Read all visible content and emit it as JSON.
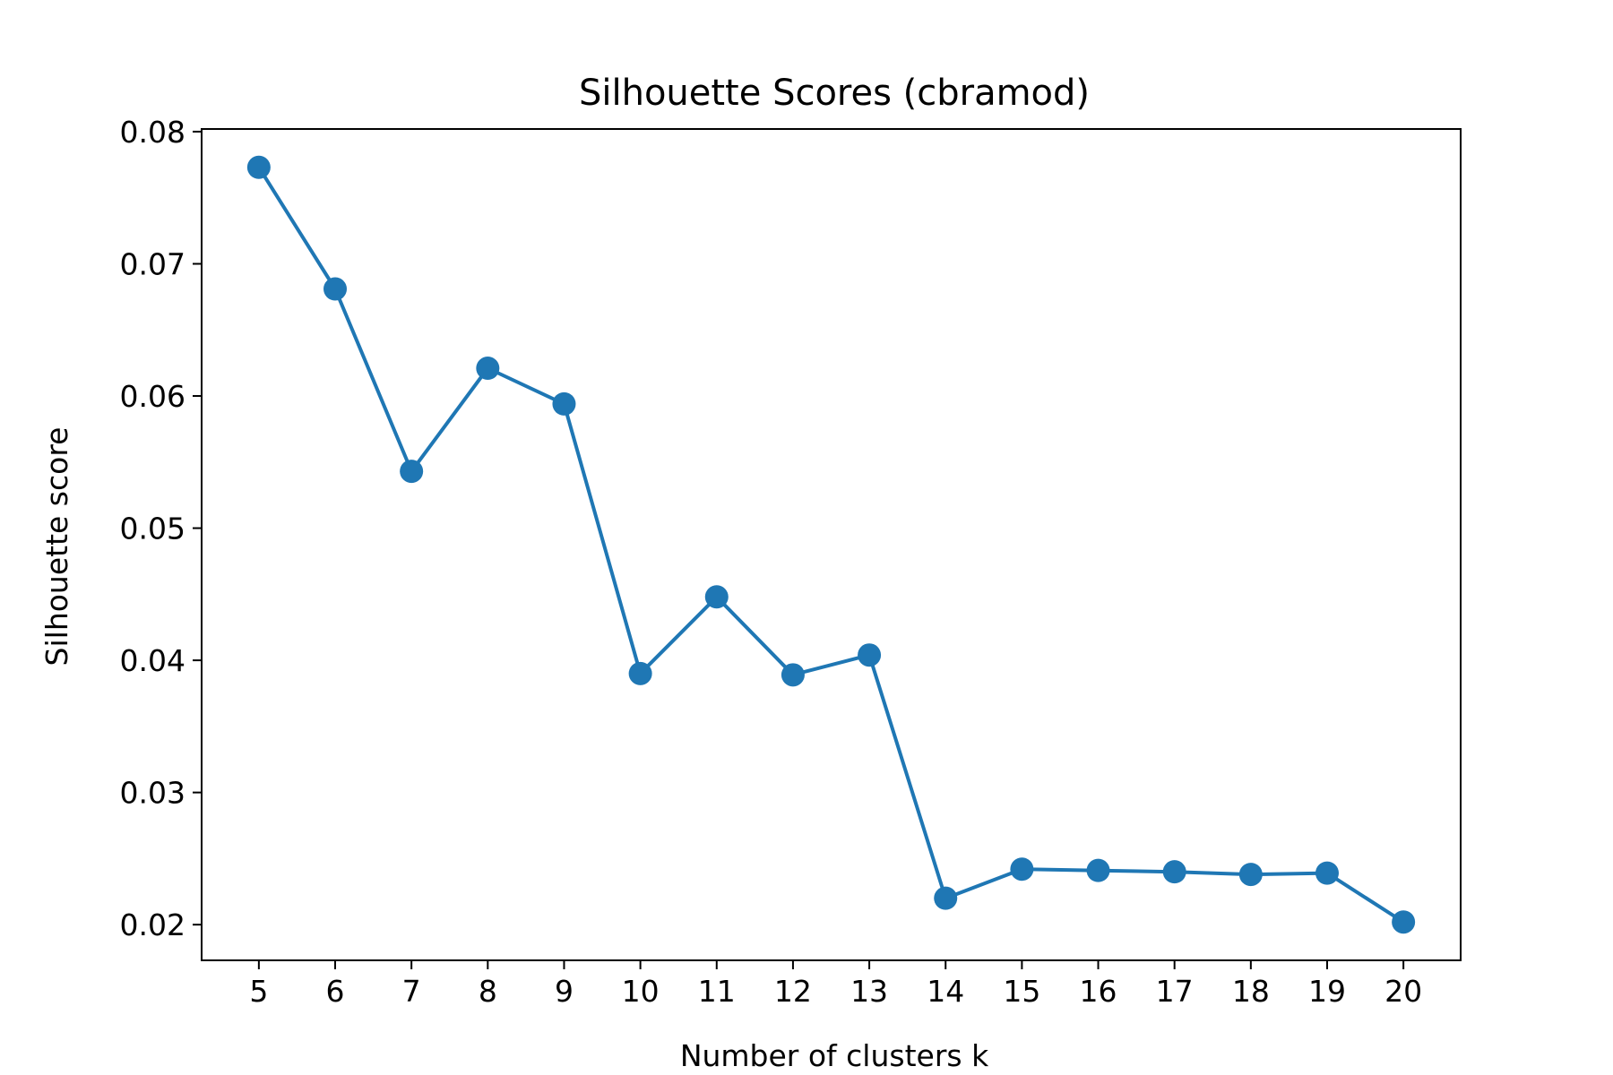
{
  "chart_data": {
    "type": "line",
    "title": "Silhouette Scores (cbramod)",
    "xlabel": "Number of clusters k",
    "ylabel": "Silhouette score",
    "x": [
      5,
      6,
      7,
      8,
      9,
      10,
      11,
      12,
      13,
      14,
      15,
      16,
      17,
      18,
      19,
      20
    ],
    "series": [
      {
        "values": [
          0.0773,
          0.0681,
          0.0543,
          0.0621,
          0.0594,
          0.039,
          0.0448,
          0.0389,
          0.0404,
          0.022,
          0.0242,
          0.0241,
          0.024,
          0.0238,
          0.0239,
          0.0202
        ],
        "color": "#1f77b4",
        "marker": "circle"
      }
    ],
    "xticks": [
      "5",
      "6",
      "7",
      "8",
      "9",
      "10",
      "11",
      "12",
      "13",
      "14",
      "15",
      "16",
      "17",
      "18",
      "19",
      "20"
    ],
    "yticks": [
      "0.02",
      "0.03",
      "0.04",
      "0.05",
      "0.06",
      "0.07",
      "0.08"
    ],
    "xlim": [
      4.25,
      20.75
    ],
    "ylim": [
      0.0173,
      0.0802
    ],
    "grid": false,
    "legend": "none"
  }
}
